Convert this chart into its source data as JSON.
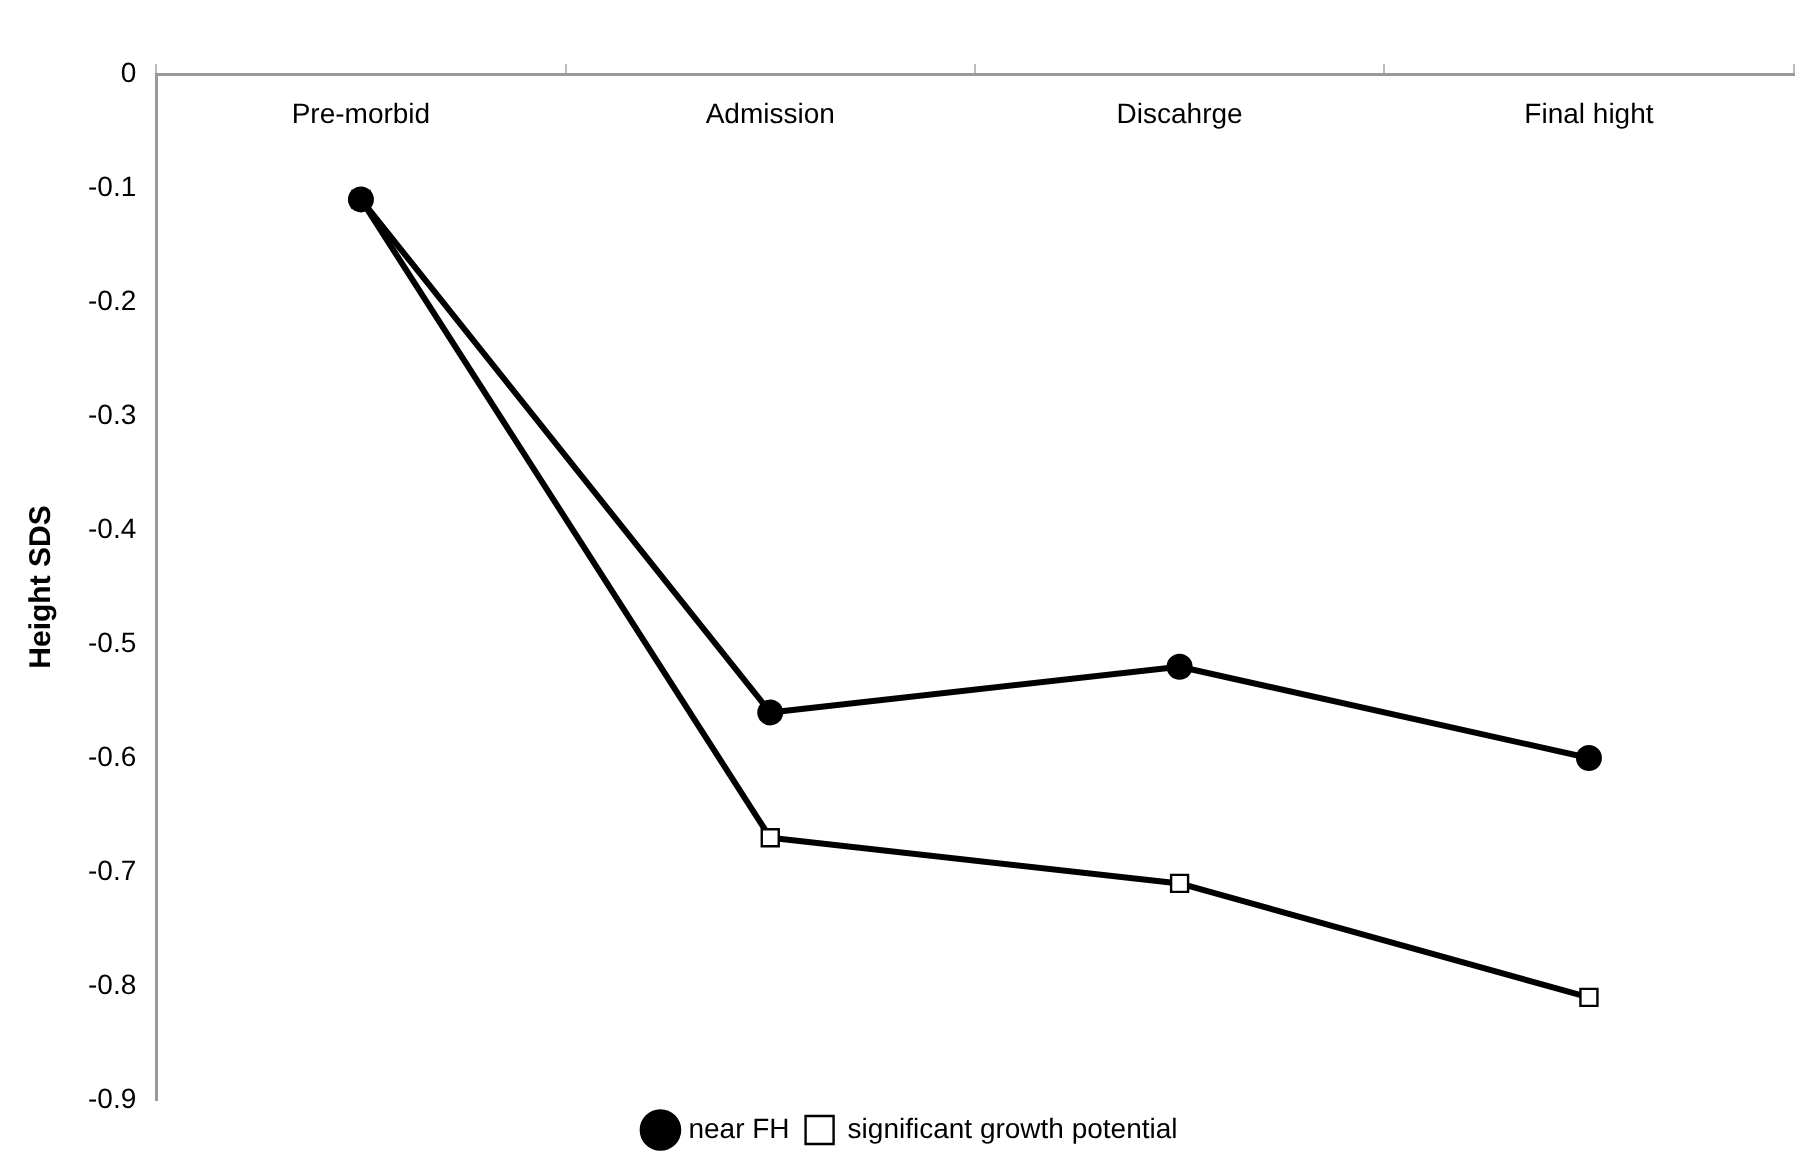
{
  "chart_data": {
    "type": "line",
    "ylabel": "Height SDS",
    "categories": [
      "Pre-morbid",
      "Admission",
      "Discahrge",
      "Final hight"
    ],
    "series": [
      {
        "name": "near FH",
        "color": "#000000",
        "marker": "circle",
        "values": [
          -0.11,
          -0.56,
          -0.52,
          -0.6
        ]
      },
      {
        "name": "significant growth potential",
        "color": "#000000",
        "marker": "square",
        "values": [
          -0.11,
          -0.67,
          -0.71,
          -0.81
        ]
      }
    ],
    "ylim": [
      -0.9,
      0
    ],
    "yticks": [
      0,
      -0.1,
      -0.2,
      -0.3,
      -0.4,
      -0.5,
      -0.6,
      -0.7,
      -0.8,
      -0.9
    ],
    "grid": false,
    "legend": "bottom",
    "line_style": "solid"
  }
}
